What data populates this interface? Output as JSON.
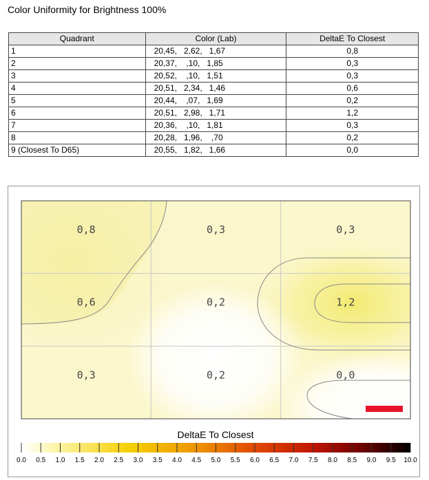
{
  "page_title": "Color Uniformity for Brightness 100%",
  "table": {
    "headers": [
      "Quadrant",
      "Color (Lab)",
      "DeltaE To Closest"
    ],
    "rows": [
      {
        "quadrant": "1",
        "lab": "20,45,   2,62,   1,67",
        "delta": "0,8"
      },
      {
        "quadrant": "2",
        "lab": "20,37,    ,10,   1,85",
        "delta": "0,3"
      },
      {
        "quadrant": "3",
        "lab": "20,52,    ,10,   1,51",
        "delta": "0,3"
      },
      {
        "quadrant": "4",
        "lab": "20,51,   2,34,   1,46",
        "delta": "0,6"
      },
      {
        "quadrant": "5",
        "lab": "20,44,    ,07,   1,69",
        "delta": "0,2"
      },
      {
        "quadrant": "6",
        "lab": "20,51,   2,98,   1,71",
        "delta": "1,2"
      },
      {
        "quadrant": "7",
        "lab": "20,36,    ,10,   1,81",
        "delta": "0,3"
      },
      {
        "quadrant": "8",
        "lab": "20,28,   1,96,    ,70",
        "delta": "0,2"
      },
      {
        "quadrant": "9 (Closest To D65)",
        "lab": "20,55,   1,82,   1,66",
        "delta": "0,0"
      }
    ]
  },
  "chart_data": {
    "type": "heatmap",
    "title": "DeltaE To Closest",
    "grid": {
      "rows": 3,
      "cols": 3
    },
    "cells": [
      {
        "quadrant": 1,
        "row": 0,
        "col": 0,
        "value": 0.8,
        "label": "0,8"
      },
      {
        "quadrant": 2,
        "row": 0,
        "col": 1,
        "value": 0.3,
        "label": "0,3"
      },
      {
        "quadrant": 3,
        "row": 0,
        "col": 2,
        "value": 0.3,
        "label": "0,3"
      },
      {
        "quadrant": 4,
        "row": 1,
        "col": 0,
        "value": 0.6,
        "label": "0,6"
      },
      {
        "quadrant": 5,
        "row": 1,
        "col": 1,
        "value": 0.2,
        "label": "0,2"
      },
      {
        "quadrant": 6,
        "row": 1,
        "col": 2,
        "value": 1.2,
        "label": "1,2"
      },
      {
        "quadrant": 7,
        "row": 2,
        "col": 0,
        "value": 0.3,
        "label": "0,3"
      },
      {
        "quadrant": 8,
        "row": 2,
        "col": 1,
        "value": 0.2,
        "label": "0,2"
      },
      {
        "quadrant": 9,
        "row": 2,
        "col": 2,
        "value": 0.0,
        "label": "0,0"
      }
    ],
    "colorbar": {
      "min": 0,
      "max": 10,
      "ticks": [
        "0.0",
        "0.5",
        "1.0",
        "1.5",
        "2.0",
        "2.5",
        "3.0",
        "3.5",
        "4.0",
        "4.5",
        "5.0",
        "5.5",
        "6.0",
        "6.5",
        "7.0",
        "7.5",
        "8.0",
        "8.5",
        "9.0",
        "9.5",
        "10.0"
      ],
      "colors": [
        "#ffffff",
        "#fdf9a8",
        "#f5d000",
        "#ee9a00",
        "#e04a00",
        "#c01800",
        "#800000",
        "#000000"
      ]
    },
    "marker_color": "#e8142c"
  }
}
